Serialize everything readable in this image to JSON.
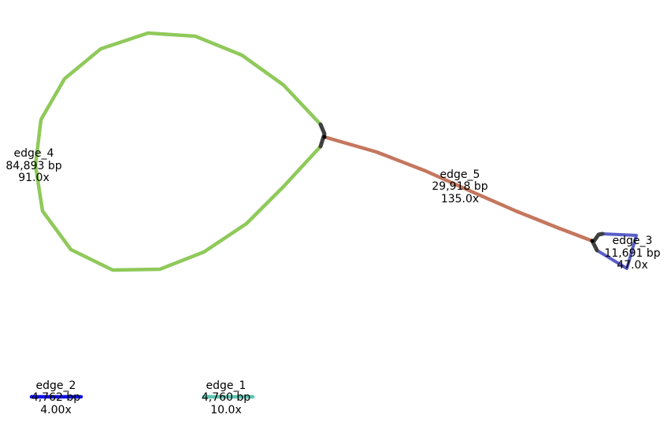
{
  "graph": {
    "edges": [
      {
        "id": "edge_4",
        "name": "edge_4",
        "length": "84,893 bp",
        "depth": "91.0x",
        "color": "#8fc95a"
      },
      {
        "id": "edge_5",
        "name": "edge_5",
        "length": "29,918 bp",
        "depth": "135.0x",
        "color": "#c4775e"
      },
      {
        "id": "edge_3",
        "name": "edge_3",
        "length": "11,691 bp",
        "depth": "47.0x",
        "color": "#5a5fc7"
      },
      {
        "id": "edge_2",
        "name": "edge_2",
        "length": "4,762 bp",
        "depth": "4.00x",
        "color": "#1010e6"
      },
      {
        "id": "edge_1",
        "name": "edge_1",
        "length": "4,760 bp",
        "depth": "10.0x",
        "color": "#5fc4b0"
      }
    ],
    "node_color": "#404040"
  }
}
